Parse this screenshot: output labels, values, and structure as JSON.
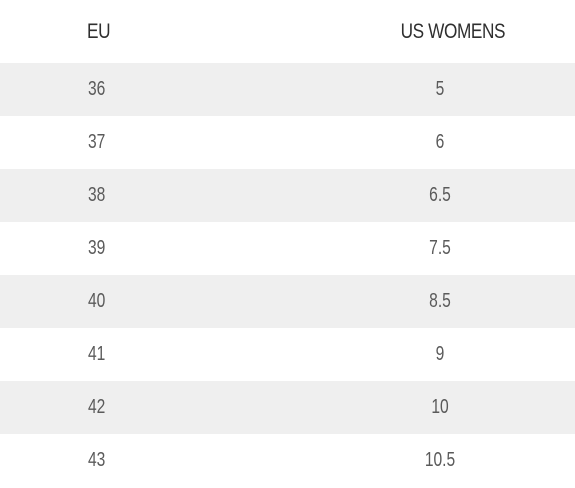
{
  "table": {
    "headers": {
      "eu": "EU",
      "us": "US WOMENS"
    },
    "rows": [
      {
        "eu": "36",
        "us": "5"
      },
      {
        "eu": "37",
        "us": "6"
      },
      {
        "eu": "38",
        "us": "6.5"
      },
      {
        "eu": "39",
        "us": "7.5"
      },
      {
        "eu": "40",
        "us": "8.5"
      },
      {
        "eu": "41",
        "us": "9"
      },
      {
        "eu": "42",
        "us": "10"
      },
      {
        "eu": "43",
        "us": "10.5"
      }
    ]
  },
  "colors": {
    "header_text": "#2f2f2f",
    "cell_text": "#5a5a5a",
    "stripe": "#efefef",
    "background": "#ffffff"
  }
}
